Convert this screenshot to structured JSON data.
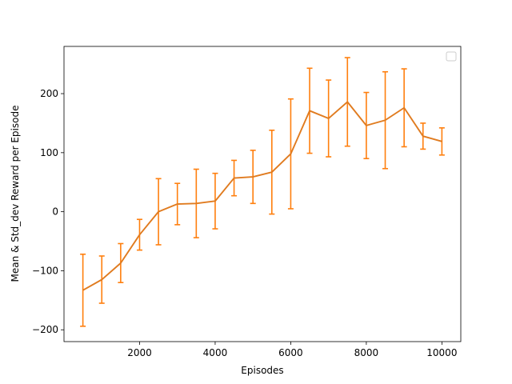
{
  "chart_data": {
    "type": "line",
    "title": "",
    "xlabel": "Episodes",
    "ylabel": "Mean & Std_dev Reward per Episode",
    "xlim": [
      0,
      10500
    ],
    "ylim": [
      -220,
      280
    ],
    "x_ticks": [
      2000,
      4000,
      6000,
      8000,
      10000
    ],
    "y_ticks": [
      -200,
      -100,
      0,
      100,
      200
    ],
    "grid": false,
    "legend": "top-right, empty box",
    "series": [
      {
        "color": "#ff7f0e",
        "line_color": "#e07b1f",
        "x": [
          500,
          1000,
          1500,
          2000,
          2500,
          3000,
          3500,
          4000,
          4500,
          5000,
          5500,
          6000,
          6500,
          7000,
          7500,
          8000,
          8500,
          9000,
          9500,
          10000
        ],
        "y": [
          -133,
          -115,
          -87,
          -39,
          0,
          13,
          14,
          18,
          57,
          59,
          67,
          98,
          171,
          158,
          186,
          146,
          155,
          176,
          128,
          119
        ],
        "err": [
          61,
          40,
          33,
          26,
          56,
          35,
          58,
          47,
          30,
          45,
          71,
          93,
          72,
          65,
          75,
          56,
          82,
          66,
          22,
          23
        ]
      }
    ]
  }
}
